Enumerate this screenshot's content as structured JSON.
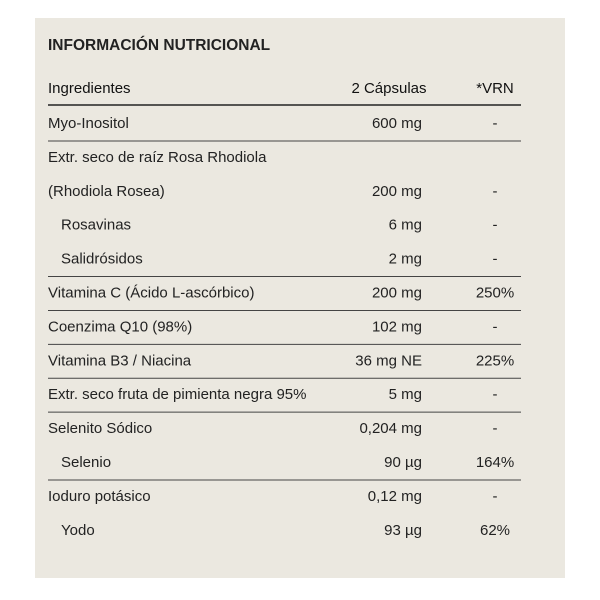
{
  "table": {
    "title": "INFORMACIÓN NUTRICIONAL",
    "header": [
      "Ingredientes",
      "2 Cápsulas",
      "*VRN"
    ],
    "groups": [
      [
        {
          "ingredient": "Myo-Inositol",
          "amount": "600 mg",
          "vrn": "-"
        }
      ],
      [
        {
          "ingredient": "Extr. seco de raíz Rosa Rhodiola"
        },
        {
          "ingredient": "(Rhodiola Rosea)",
          "amount": "200 mg",
          "vrn": "-"
        },
        {
          "ingredient": "Rosavinas",
          "amount": "6 mg",
          "vrn": "-",
          "indent": true
        },
        {
          "ingredient": "Salidrósidos",
          "amount": "2 mg",
          "vrn": "-",
          "indent": true
        }
      ],
      [
        {
          "ingredient": "Vitamina C (Ácido L-ascórbico)",
          "amount": "200 mg",
          "vrn": "250%"
        }
      ],
      [
        {
          "ingredient": "Coenzima Q10 (98%)",
          "amount": "102 mg",
          "vrn": "-"
        }
      ],
      [
        {
          "ingredient": "Vitamina B3 / Niacina",
          "amount": "36 mg NE",
          "vrn": "225%"
        }
      ],
      [
        {
          "ingredient": "Extr. seco fruta de pimienta negra 95%",
          "amount": "5 mg",
          "vrn": "-"
        }
      ],
      [
        {
          "ingredient": "Selenito Sódico",
          "amount": "0,204 mg",
          "vrn": "-"
        },
        {
          "ingredient": "Selenio",
          "amount": "90 µg",
          "vrn": "164%",
          "indent": true
        }
      ],
      [
        {
          "ingredient": "Ioduro potásico",
          "amount": "0,12 mg",
          "vrn": "-"
        },
        {
          "ingredient": "Yodo",
          "amount": "93 µg",
          "vrn": "62%",
          "indent": true
        }
      ]
    ]
  }
}
